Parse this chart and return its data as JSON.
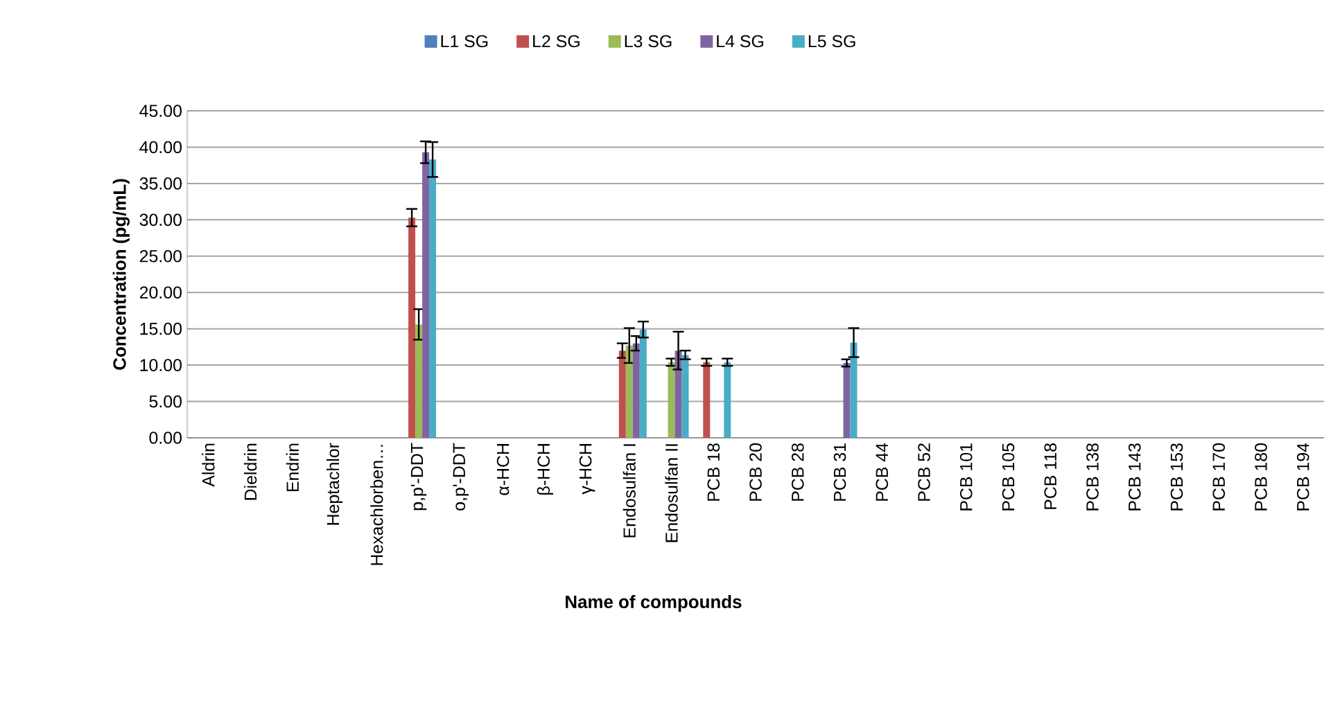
{
  "chart_data": {
    "type": "bar",
    "xlabel": "Name of compounds",
    "ylabel": "Concentration  (pg/mL)",
    "categories": [
      "Aldrin",
      "Dieldrin",
      "Endrin",
      "Heptachlor",
      "Hexachlorben…",
      "p,p'-DDT",
      "o,p'-DDT",
      "α-HCH",
      "β-HCH",
      "γ-HCH",
      "Endosulfan I",
      "Endosulfan II",
      "PCB 18",
      "PCB 20",
      "PCB 28",
      "PCB 31",
      "PCB 44",
      "PCB 52",
      "PCB 101",
      "PCB 105",
      "PCB 118",
      "PCB 138",
      "PCB 143",
      "PCB 153",
      "PCB 170",
      "PCB 180",
      "PCB 194"
    ],
    "ylim": [
      0,
      45
    ],
    "yticks": [
      {
        "value": 0,
        "label": "0.00"
      },
      {
        "value": 5,
        "label": "5.00"
      },
      {
        "value": 10,
        "label": "10.00"
      },
      {
        "value": 15,
        "label": "15.00"
      },
      {
        "value": 20,
        "label": "20.00"
      },
      {
        "value": 25,
        "label": "25.00"
      },
      {
        "value": 30,
        "label": "30.00"
      },
      {
        "value": 35,
        "label": "35.00"
      },
      {
        "value": 40,
        "label": "40.00"
      },
      {
        "value": 45,
        "label": "45.00"
      }
    ],
    "grid": "y",
    "legend": "top",
    "series": [
      {
        "name": "L1 SG",
        "color": "#4f81bd",
        "values": [
          null,
          null,
          null,
          null,
          null,
          null,
          null,
          null,
          null,
          null,
          null,
          null,
          null,
          null,
          null,
          null,
          null,
          null,
          null,
          null,
          null,
          null,
          null,
          null,
          null,
          null,
          null
        ]
      },
      {
        "name": "L2 SG",
        "color": "#c0504d",
        "values": [
          null,
          null,
          null,
          null,
          null,
          30.3,
          null,
          null,
          null,
          null,
          12.0,
          null,
          10.4,
          null,
          null,
          null,
          null,
          null,
          null,
          null,
          null,
          null,
          null,
          null,
          null,
          null,
          null
        ],
        "errors": [
          null,
          null,
          null,
          null,
          null,
          1.2,
          null,
          null,
          null,
          null,
          1.0,
          null,
          0.5,
          null,
          null,
          null,
          null,
          null,
          null,
          null,
          null,
          null,
          null,
          null,
          null,
          null,
          null
        ]
      },
      {
        "name": "L3 SG",
        "color": "#9bbb59",
        "values": [
          null,
          null,
          null,
          null,
          null,
          15.6,
          null,
          null,
          null,
          null,
          12.7,
          10.4,
          null,
          null,
          null,
          null,
          null,
          null,
          null,
          null,
          null,
          null,
          null,
          null,
          null,
          null,
          null
        ],
        "errors": [
          null,
          null,
          null,
          null,
          null,
          2.1,
          null,
          null,
          null,
          null,
          2.4,
          0.5,
          null,
          null,
          null,
          null,
          null,
          null,
          null,
          null,
          null,
          null,
          null,
          null,
          null,
          null,
          null
        ]
      },
      {
        "name": "L4 SG",
        "color": "#8064a2",
        "values": [
          null,
          null,
          null,
          null,
          null,
          39.3,
          null,
          null,
          null,
          null,
          13.0,
          12.0,
          null,
          null,
          null,
          10.3,
          null,
          null,
          null,
          null,
          null,
          null,
          null,
          null,
          null,
          null,
          null
        ],
        "errors": [
          null,
          null,
          null,
          null,
          null,
          1.5,
          null,
          null,
          null,
          null,
          1.0,
          2.6,
          null,
          null,
          null,
          0.5,
          null,
          null,
          null,
          null,
          null,
          null,
          null,
          null,
          null,
          null,
          null
        ]
      },
      {
        "name": "L5 SG",
        "color": "#4bacc6",
        "values": [
          null,
          null,
          null,
          null,
          null,
          38.3,
          null,
          null,
          null,
          null,
          14.9,
          11.4,
          10.4,
          null,
          null,
          13.1,
          null,
          null,
          null,
          null,
          null,
          null,
          null,
          null,
          null,
          null,
          null
        ],
        "errors": [
          null,
          null,
          null,
          null,
          null,
          2.4,
          null,
          null,
          null,
          null,
          1.1,
          0.6,
          0.5,
          null,
          null,
          2.0,
          null,
          null,
          null,
          null,
          null,
          null,
          null,
          null,
          null,
          null,
          null
        ]
      }
    ]
  }
}
